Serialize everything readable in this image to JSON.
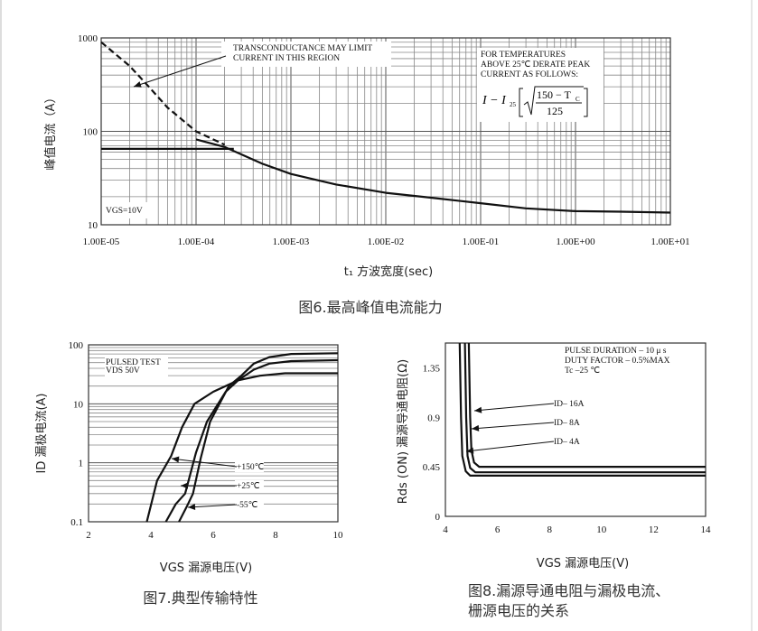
{
  "chart_data": [
    {
      "id": "fig6",
      "type": "line",
      "caption": "图6.最高峰值电流能力",
      "xlabel": "t₁ 方波宽度(sec)",
      "ylabel": "峰值电流（A）",
      "xscale": "log",
      "yscale": "log",
      "xlim": [
        1e-05,
        10
      ],
      "ylim": [
        10,
        1000
      ],
      "grid": true,
      "xtick_labels": [
        "1.00E-05",
        "1.00E-04",
        "1.00E-03",
        "1.00E-02",
        "1.00E-01",
        "1.00E+00",
        "1.00E+01"
      ],
      "xticks": [
        1e-05,
        0.0001,
        0.001,
        0.01,
        0.1,
        1,
        10
      ],
      "ytick_labels": [
        "1000",
        "100",
        "10"
      ],
      "yticks": [
        1000,
        100,
        10
      ],
      "series": [
        {
          "style": "dashed",
          "x": [
            1e-05,
            2e-05,
            3e-05,
            5e-05,
            0.0001,
            0.0002
          ],
          "y": [
            900,
            500,
            320,
            180,
            100,
            72
          ]
        },
        {
          "style": "solid",
          "x": [
            1e-05,
            0.00025
          ],
          "y": [
            65,
            65
          ]
        },
        {
          "style": "solid",
          "x": [
            0.0001,
            0.0002,
            0.0005,
            0.001,
            0.003,
            0.01,
            0.03,
            0.1,
            0.3,
            1,
            3,
            10
          ],
          "y": [
            82,
            68,
            45,
            35,
            27,
            22,
            19.5,
            17,
            15,
            14,
            13.8,
            13.5
          ]
        }
      ],
      "annotations": {
        "transconductance": [
          "TRANSCONDUCTANCE   MAY   LIMIT",
          "CURRENT   IN   THIS   REGION"
        ],
        "derate": [
          "FOR   TEMPERATURES",
          "ABOVE   25℃  DERATE   PEAK",
          "CURRENT   AS   FOLLOWS:"
        ],
        "formula_lhs": "I − I",
        "formula_sub": "25",
        "formula_num": "150 − T",
        "formula_num_sub": "C",
        "formula_den": "125",
        "vgs": "VGS=10V"
      }
    },
    {
      "id": "fig7",
      "type": "line",
      "caption": "图7.典型传输特性",
      "xlabel": "VGS 漏源电压(V)",
      "ylabel": "ID 漏极电流(A)",
      "xscale": "linear",
      "yscale": "log",
      "xlim": [
        2,
        10
      ],
      "ylim": [
        0.1,
        100
      ],
      "grid": true,
      "xticks": [
        2,
        4,
        6,
        8,
        10
      ],
      "xtick_labels": [
        "2",
        "4",
        "6",
        "8",
        "10"
      ],
      "yticks": [
        100,
        10,
        1,
        0.1
      ],
      "ytick_labels": [
        "100",
        "10",
        "1",
        "0.1"
      ],
      "series": [
        {
          "name": "+150℃",
          "x": [
            3.87,
            4.2,
            4.65,
            5.0,
            5.4,
            6.0,
            6.8,
            7.5,
            8.3,
            10
          ],
          "y": [
            0.1,
            0.5,
            1.3,
            4,
            10,
            16,
            25,
            30,
            33,
            33
          ]
        },
        {
          "name": "+25℃",
          "x": [
            4.48,
            4.8,
            5.1,
            5.45,
            5.8,
            6.4,
            6.8,
            7.3,
            7.8,
            8.5,
            10
          ],
          "y": [
            0.1,
            0.2,
            0.3,
            1.5,
            5,
            16,
            25,
            38,
            48,
            53,
            55
          ]
        },
        {
          "name": "-55℃",
          "x": [
            4.9,
            5.15,
            5.35,
            5.6,
            5.9,
            6.5,
            6.9,
            7.3,
            7.8,
            8.5,
            10
          ],
          "y": [
            0.1,
            0.18,
            0.3,
            1.2,
            5,
            20,
            30,
            48,
            62,
            70,
            72
          ]
        }
      ],
      "annotations": {
        "test": [
          "PULSED   TEST",
          "VDS  50V"
        ]
      }
    },
    {
      "id": "fig8",
      "type": "line",
      "caption": [
        "图8.漏源导通电阻与漏极电流、",
        "栅源电压的关系"
      ],
      "xlabel": "VGS 漏源电压(V)",
      "ylabel": "Rds (ON) 漏源导通电阻(Ω)",
      "xscale": "linear",
      "yscale": "linear",
      "xlim": [
        4,
        14
      ],
      "ylim": [
        0,
        1.575
      ],
      "grid": true,
      "xticks": [
        4,
        6,
        8,
        10,
        12,
        14
      ],
      "xtick_labels": [
        "4",
        "6",
        "8",
        "10",
        "12",
        "14"
      ],
      "yticks": [
        0,
        0.45,
        0.9,
        1.35
      ],
      "ytick_labels": [
        "0",
        "0.45",
        "0.9",
        "1.35"
      ],
      "series": [
        {
          "name": "ID– 16A",
          "x": [
            4.9,
            4.95,
            5.0,
            5.1,
            5.3,
            14
          ],
          "y": [
            1.575,
            0.9,
            0.6,
            0.49,
            0.45,
            0.45
          ]
        },
        {
          "name": "ID– 8A",
          "x": [
            4.75,
            4.8,
            4.85,
            4.95,
            5.15,
            14
          ],
          "y": [
            1.575,
            0.9,
            0.55,
            0.44,
            0.4,
            0.4
          ]
        },
        {
          "name": "ID– 4A",
          "x": [
            4.55,
            4.6,
            4.65,
            4.78,
            4.95,
            14
          ],
          "y": [
            1.575,
            0.9,
            0.55,
            0.41,
            0.37,
            0.37
          ]
        }
      ],
      "annotations": {
        "pulse": [
          "PULSE    DURATION – 10 μ s",
          "DUTY    FACTOR – 0.5%MAX",
          "Tc –25  ℃"
        ]
      }
    }
  ]
}
